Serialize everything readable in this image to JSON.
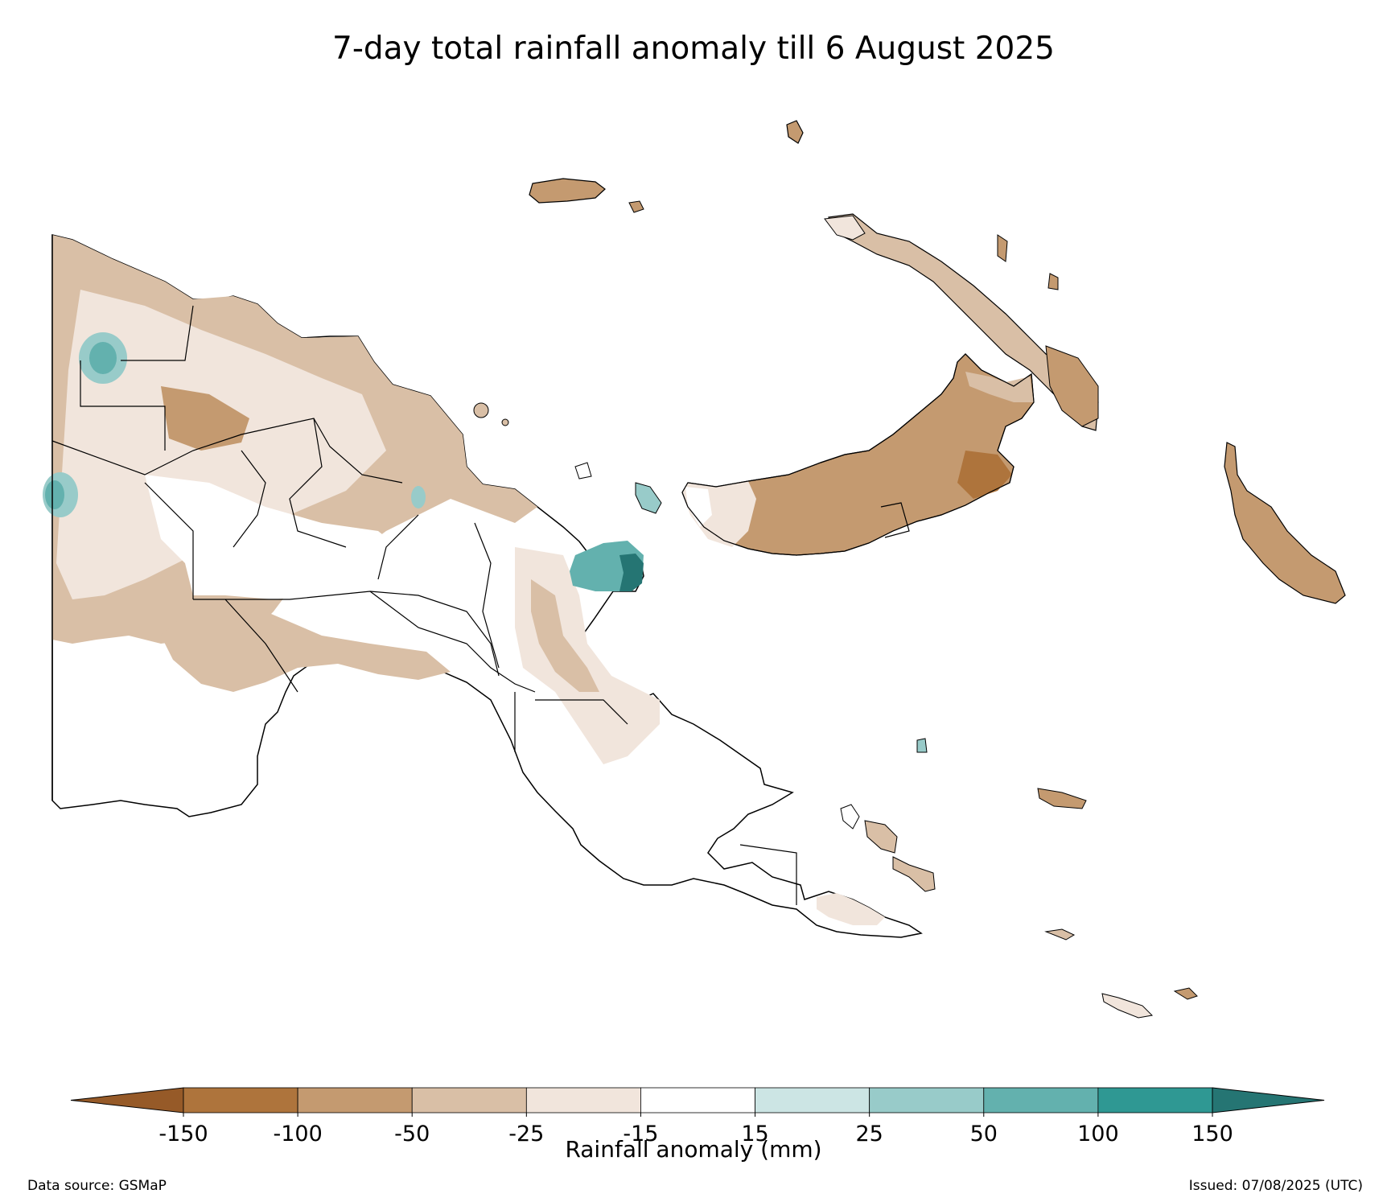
{
  "title": "7-day total rainfall anomaly till 6 August 2025",
  "colorbar": {
    "label": "Rainfall anomaly (mm)",
    "ticks": [
      "-150",
      "-100",
      "-50",
      "-25",
      "-15",
      "15",
      "25",
      "50",
      "100",
      "150"
    ],
    "bins": [
      {
        "range": "< -150",
        "color": "#965a28"
      },
      {
        "range": "-150 to -100",
        "color": "#ae743c"
      },
      {
        "range": "-100 to -50",
        "color": "#c49a70"
      },
      {
        "range": "-50 to -25",
        "color": "#d9bfa6"
      },
      {
        "range": "-25 to -15",
        "color": "#f1e5dc"
      },
      {
        "range": "-15 to 15",
        "color": "#ffffff"
      },
      {
        "range": "15 to 25",
        "color": "#cce5e4"
      },
      {
        "range": "25 to 50",
        "color": "#98cbc9"
      },
      {
        "range": "50 to 100",
        "color": "#63b1ae"
      },
      {
        "range": "100 to 150",
        "color": "#2f9893"
      },
      {
        "range": "> 150",
        "color": "#257573"
      }
    ]
  },
  "footer": {
    "source": "Data source: GSMaP",
    "issued": "Issued: 07/08/2025 (UTC)"
  },
  "map_region": "Papua New Guinea"
}
